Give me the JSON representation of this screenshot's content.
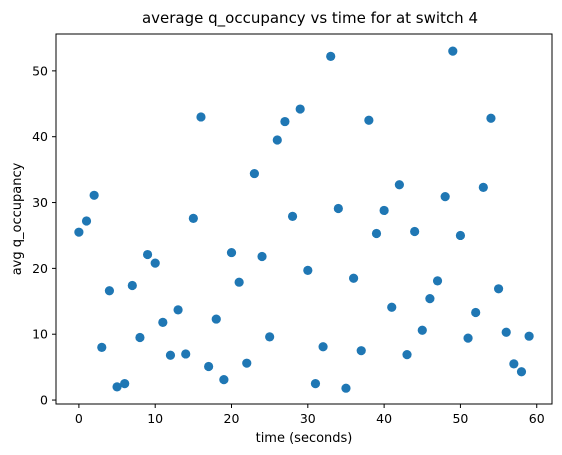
{
  "chart_data": {
    "type": "scatter",
    "title": "average q_occupancy vs time for at switch 4",
    "xlabel": "time (seconds)",
    "ylabel": "avg q_occupancy",
    "xlim": [
      -3,
      62
    ],
    "ylim": [
      -0.6,
      55.6
    ],
    "grid": false,
    "legend": "none",
    "marker_color": "#1f77b4",
    "x_ticks": [
      0,
      10,
      20,
      30,
      40,
      50,
      60
    ],
    "y_ticks": [
      0,
      10,
      20,
      30,
      40,
      50
    ],
    "x": [
      0,
      1,
      2,
      3,
      4,
      5,
      6,
      7,
      8,
      9,
      10,
      11,
      12,
      13,
      14,
      15,
      16,
      17,
      18,
      19,
      20,
      21,
      22,
      23,
      24,
      25,
      26,
      27,
      28,
      29,
      30,
      31,
      32,
      33,
      34,
      35,
      36,
      37,
      38,
      39,
      40,
      41,
      42,
      43,
      44,
      45,
      46,
      47,
      48,
      49,
      50,
      51,
      52,
      53,
      54,
      55,
      56,
      57,
      58,
      59
    ],
    "y": [
      25.5,
      27.2,
      31.1,
      8.0,
      16.6,
      2.0,
      2.5,
      17.4,
      9.5,
      22.1,
      20.8,
      11.8,
      6.8,
      13.7,
      7.0,
      27.6,
      43.0,
      5.1,
      12.3,
      3.1,
      22.4,
      17.9,
      5.6,
      34.4,
      21.8,
      9.6,
      39.5,
      42.3,
      27.9,
      44.2,
      19.7,
      2.5,
      8.1,
      52.2,
      29.1,
      1.8,
      18.5,
      7.5,
      42.5,
      25.3,
      28.8,
      14.1,
      32.7,
      6.9,
      25.6,
      10.6,
      15.4,
      18.1,
      30.9,
      53.0,
      25.0,
      9.4,
      13.3,
      32.3,
      42.8,
      16.9,
      10.3,
      5.5,
      4.3,
      9.7
    ]
  }
}
